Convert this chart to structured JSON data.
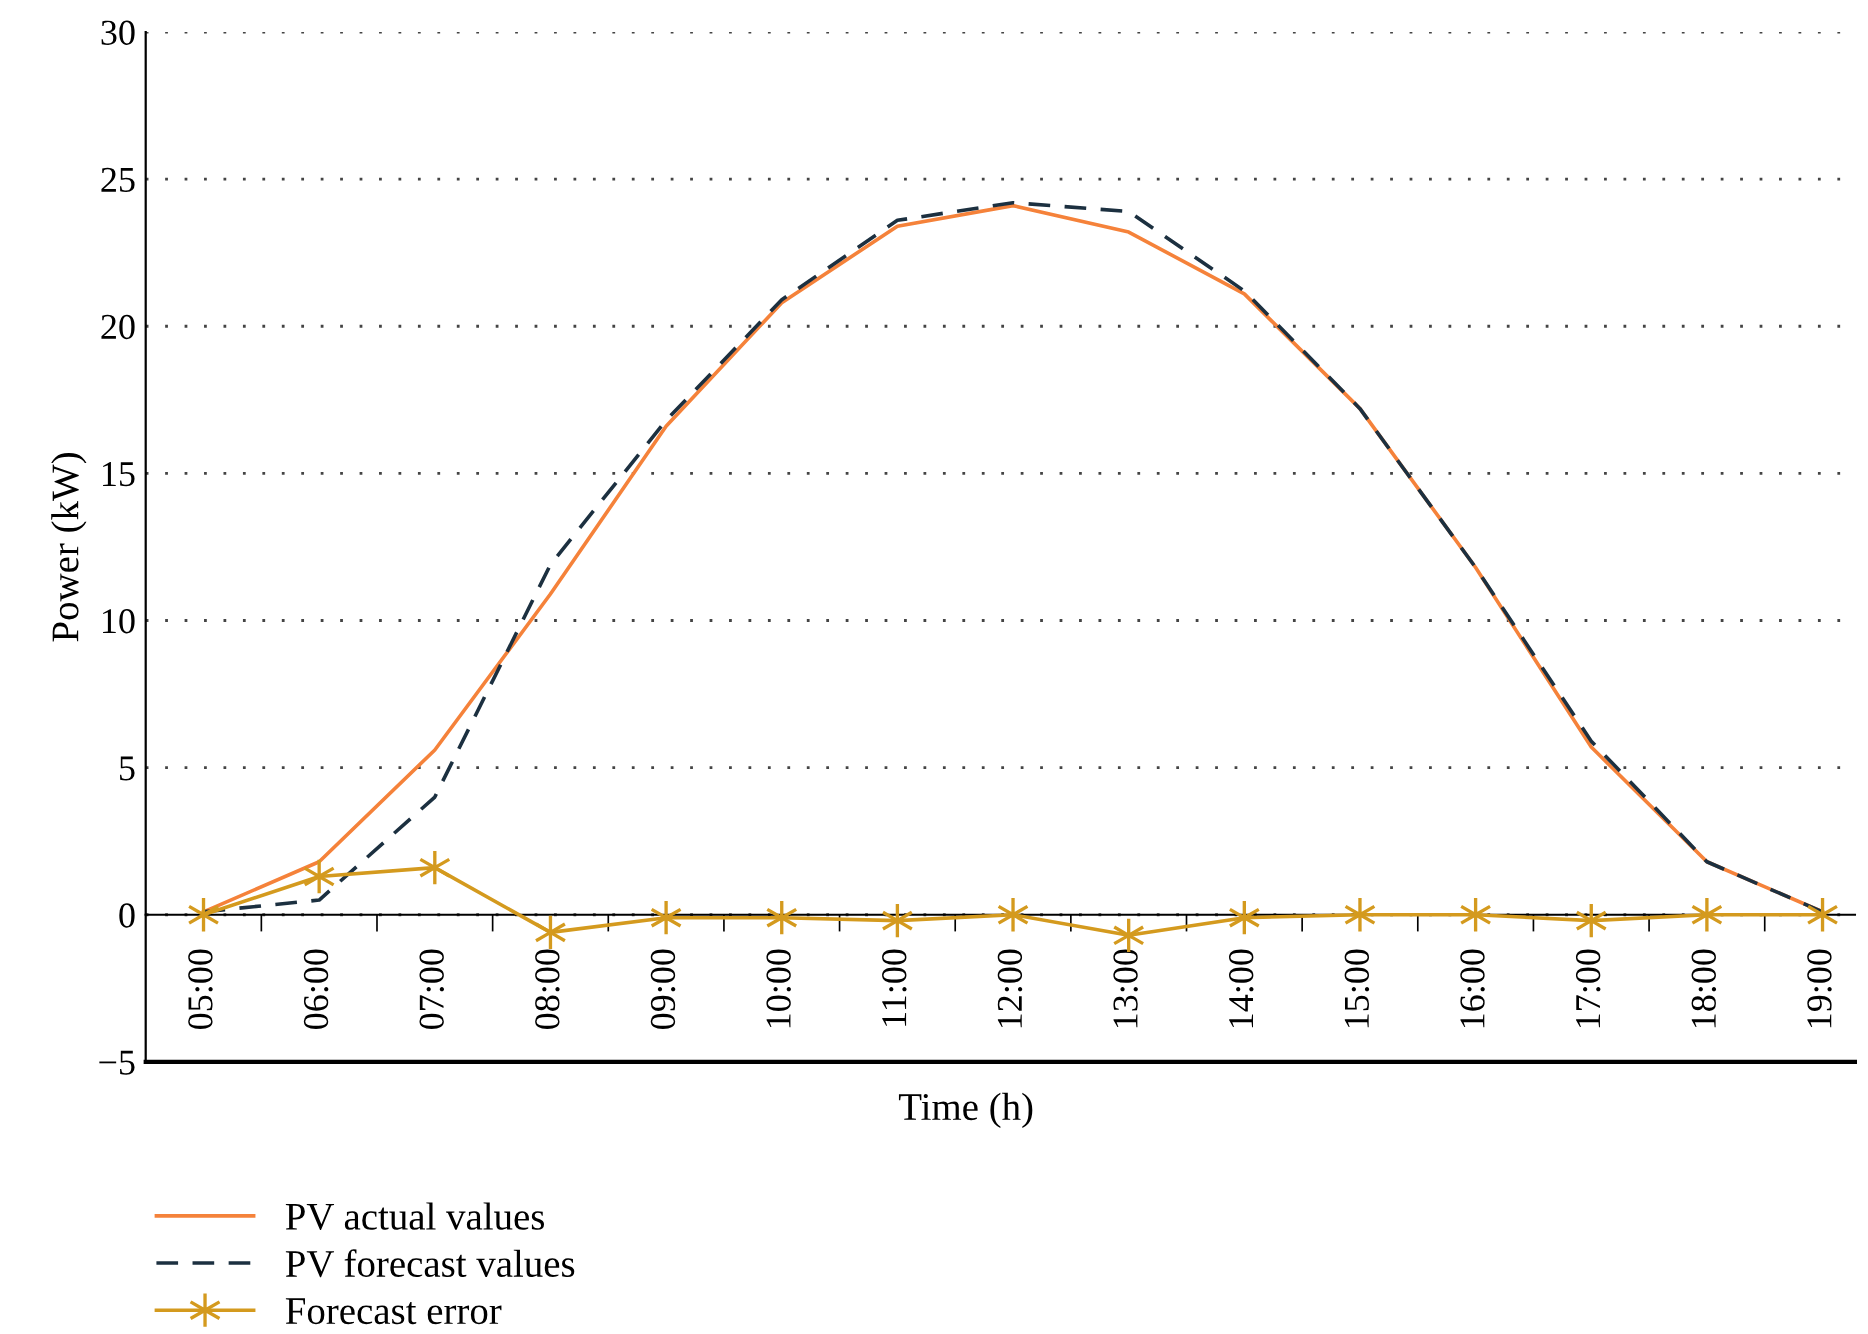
{
  "chart_data": {
    "type": "line",
    "xlabel": "Time (h)",
    "ylabel": "Power (kW)",
    "categories": [
      "05:00",
      "06:00",
      "07:00",
      "08:00",
      "09:00",
      "10:00",
      "11:00",
      "12:00",
      "13:00",
      "14:00",
      "15:00",
      "16:00",
      "17:00",
      "18:00",
      "19:00"
    ],
    "series": [
      {
        "name": "PV actual values",
        "color": "#f5823a",
        "line_style": "solid",
        "marker": "none",
        "values": [
          0.1,
          1.8,
          5.6,
          10.9,
          16.6,
          20.8,
          23.4,
          24.1,
          23.2,
          21.1,
          17.2,
          11.8,
          5.7,
          1.8,
          0.1
        ]
      },
      {
        "name": "PV forecast values",
        "color": "#1c3040",
        "line_style": "dashed",
        "marker": "none",
        "values": [
          0.1,
          0.5,
          4.0,
          11.9,
          16.8,
          20.9,
          23.6,
          24.2,
          23.9,
          21.2,
          17.2,
          11.8,
          5.9,
          1.8,
          0.1
        ]
      },
      {
        "name": "Forecast error",
        "color": "#d49a1e",
        "line_style": "solid",
        "marker": "cross",
        "values": [
          0,
          1.3,
          1.6,
          -0.6,
          -0.1,
          -0.1,
          -0.2,
          0,
          -0.7,
          -0.1,
          0,
          0,
          -0.2,
          0,
          0
        ]
      }
    ],
    "ylim": [
      -5,
      30
    ],
    "yticks": [
      {
        "value": -5,
        "label": "−5"
      },
      0,
      5,
      10,
      15,
      20,
      25,
      30
    ],
    "grid": "y",
    "legend": "bottom left"
  }
}
